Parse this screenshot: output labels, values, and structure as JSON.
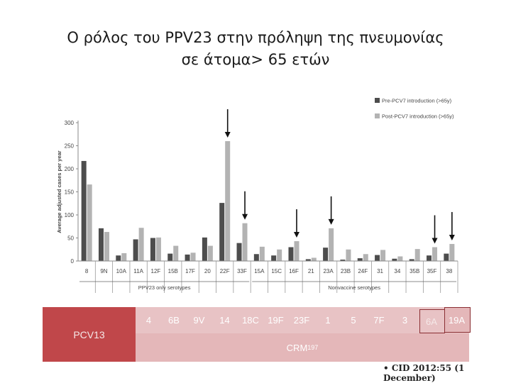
{
  "title_line1": "Ο ρόλος του PPV23 στην πρόληψη της πνευμονίας",
  "title_line2": "σε άτομα> 65 ετών",
  "chart_data": {
    "type": "bar",
    "ylabel": "Average adjusted cases per year",
    "ylim": [
      0,
      300
    ],
    "yticks": [
      0,
      50,
      100,
      150,
      200,
      250,
      300
    ],
    "categories": [
      "8",
      "9N",
      "10A",
      "11A",
      "12F",
      "15B",
      "17F",
      "20",
      "22F",
      "33F",
      "15A",
      "15C",
      "16F",
      "21",
      "23A",
      "23B",
      "24F",
      "31",
      "34",
      "35B",
      "35F",
      "38"
    ],
    "series": [
      {
        "name": "Pre-PCV7 introduction (>65y)",
        "color": "#4d4d4d",
        "values": [
          217,
          71,
          12,
          47,
          50,
          16,
          14,
          51,
          126,
          39,
          15,
          12,
          30,
          4,
          29,
          3,
          6,
          13,
          5,
          4,
          12,
          16
        ]
      },
      {
        "name": "Post-PCV7 introduction (>65y)",
        "color": "#b3b3b3",
        "values": [
          166,
          63,
          17,
          72,
          51,
          33,
          18,
          33,
          260,
          82,
          31,
          25,
          43,
          7,
          71,
          25,
          15,
          24,
          10,
          26,
          30,
          37
        ]
      }
    ],
    "group_labels": [
      {
        "label": "PPV23 only serotypes",
        "from": 0,
        "to": 9
      },
      {
        "label": "Nonvaccine serotypes",
        "from": 10,
        "to": 21
      }
    ],
    "arrows_on": [
      "22F",
      "33F",
      "16F",
      "23A",
      "35F",
      "38"
    ],
    "legend_position": "top-right"
  },
  "table": {
    "row_label": "PCV13",
    "serotypes": [
      "4",
      "6B",
      "9V",
      "14",
      "18C",
      "19F",
      "23F",
      "1",
      "5",
      "7F",
      "3",
      "6A",
      "19A"
    ],
    "carrier_prefix": "CRM",
    "carrier_sub": "197"
  },
  "citation": "• CID 2012:55 (1 December)"
}
